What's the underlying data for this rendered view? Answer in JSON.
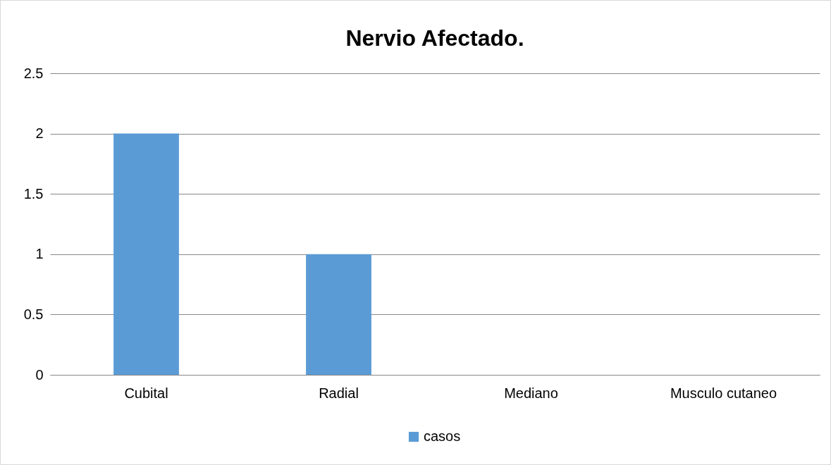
{
  "chart_data": {
    "type": "bar",
    "title": "Nervio Afectado.",
    "categories": [
      "Cubital",
      "Radial",
      "Mediano",
      "Musculo cutaneo"
    ],
    "series": [
      {
        "name": "casos",
        "color": "#5b9bd5",
        "values": [
          2,
          1,
          0,
          0
        ]
      }
    ],
    "ylim": [
      0,
      2.5
    ],
    "yticks": [
      0,
      0.5,
      1,
      1.5,
      2,
      2.5
    ],
    "grid": "y",
    "legend": "bottom"
  }
}
